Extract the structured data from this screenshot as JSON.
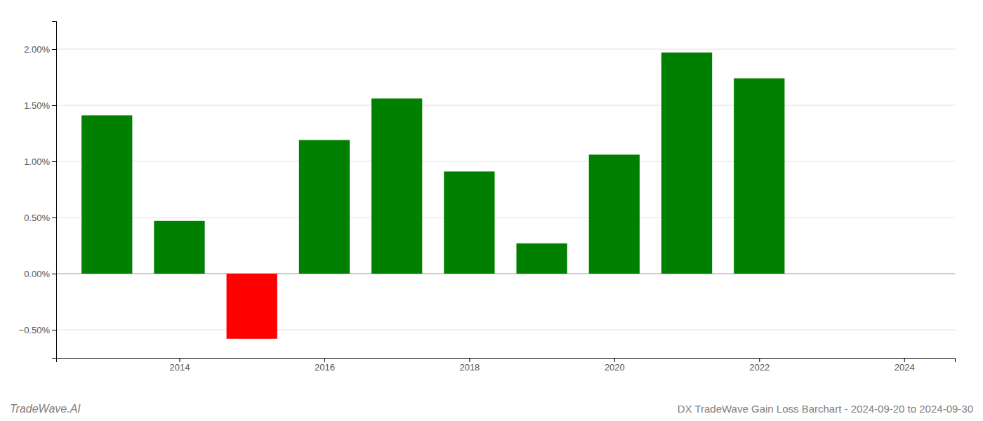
{
  "chart_data": {
    "type": "bar",
    "title": "DX TradeWave Gain Loss Barchart - 2024-09-20 to 2024-09-30",
    "annotations": [
      "TradeWave.AI"
    ],
    "x": [
      2013,
      2014,
      2015,
      2016,
      2017,
      2018,
      2019,
      2020,
      2021,
      2022
    ],
    "values": [
      1.41,
      0.47,
      -0.58,
      1.19,
      1.56,
      0.91,
      0.27,
      1.06,
      1.97,
      1.74
    ],
    "colors": [
      "#008000",
      "#008000",
      "#ff0000",
      "#008000",
      "#008000",
      "#008000",
      "#008000",
      "#008000",
      "#008000",
      "#008000"
    ],
    "xlim": [
      2012.3,
      2024.7
    ],
    "xticks": [
      2014,
      2016,
      2018,
      2020,
      2022,
      2024
    ],
    "ylim": [
      -0.75,
      2.25
    ],
    "yticks": [
      {
        "value": -0.5,
        "label": "−0.50%"
      },
      {
        "value": 0.0,
        "label": "0.00%"
      },
      {
        "value": 0.5,
        "label": "0.50%"
      },
      {
        "value": 1.0,
        "label": "1.00%"
      },
      {
        "value": 1.5,
        "label": "1.50%"
      },
      {
        "value": 2.0,
        "label": "2.00%"
      }
    ],
    "grid": true
  }
}
